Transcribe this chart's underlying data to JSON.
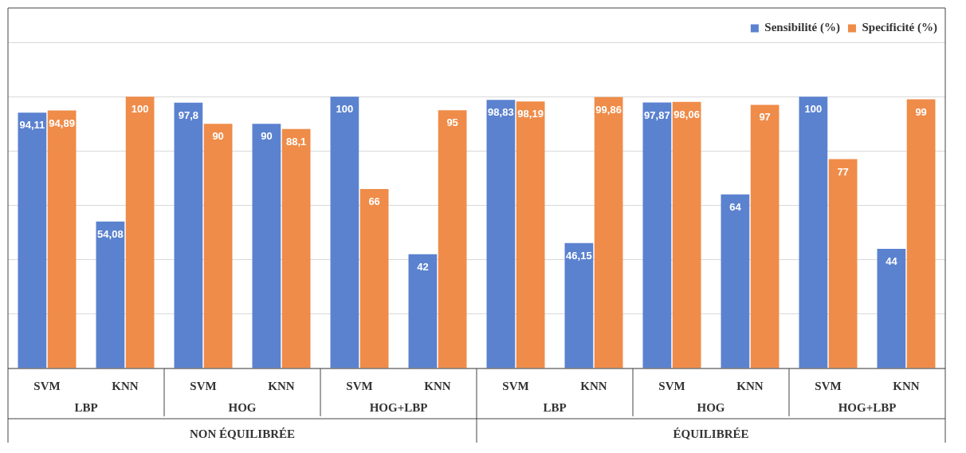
{
  "chart_data": {
    "type": "bar",
    "categories": [
      "SVM",
      "KNN",
      "SVM",
      "KNN",
      "SVM",
      "KNN",
      "SVM",
      "KNN",
      "SVM",
      "KNN",
      "SVM",
      "KNN"
    ],
    "series": [
      {
        "name": "Sensibilité (%)",
        "color": "#5b82cf",
        "values": [
          94.11,
          54.08,
          97.8,
          90,
          100,
          42,
          98.83,
          46.15,
          97.87,
          64,
          100,
          44
        ],
        "value_labels": [
          "94,11",
          "54,08",
          "97,8",
          "90",
          "100",
          "42",
          "98,83",
          "46,15",
          "97,87",
          "64",
          "100",
          "44"
        ]
      },
      {
        "name": "Specificité (%)",
        "color": "#ef8c49",
        "values": [
          94.89,
          100,
          90,
          88.1,
          66,
          95,
          98.19,
          99.86,
          98.06,
          97,
          77,
          99
        ],
        "value_labels": [
          "94,89",
          "100",
          "90",
          "88,1",
          "66",
          "95",
          "98,19",
          "99,86",
          "98,06",
          "97",
          "77",
          "99"
        ]
      }
    ],
    "annotations": [
      "LBP",
      "HOG",
      "HOG+LBP",
      "LBP",
      "HOG",
      "HOG+LBP",
      "NON ÉQUILIBRÉE",
      "ÉQUILIBRÉE"
    ],
    "ylim": [
      0,
      120
    ],
    "yticks": [
      {
        "value": 0,
        "label": null
      },
      {
        "value": 20,
        "label": null
      },
      {
        "value": 40,
        "label": null
      },
      {
        "value": 60,
        "label": null
      },
      {
        "value": 80,
        "label": null
      },
      {
        "value": 100,
        "label": null
      },
      {
        "value": 120,
        "label": null
      }
    ],
    "grid": "y",
    "legend": "top right",
    "tick_labels": "x"
  }
}
